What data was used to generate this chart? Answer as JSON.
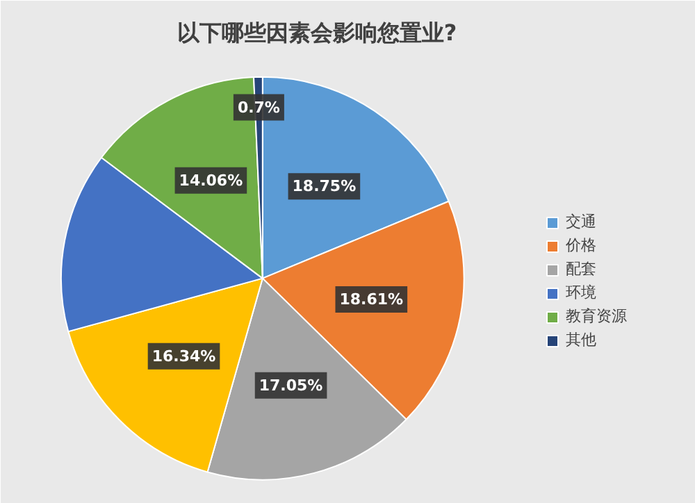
{
  "chart_data": {
    "type": "pie",
    "title": "以下哪些因素会影响您置业?",
    "categories": [
      "交通",
      "价格",
      "配套",
      null,
      "环境",
      "教育资源",
      "其他"
    ],
    "values": [
      18.75,
      18.61,
      17.05,
      16.34,
      14.49,
      14.06,
      0.7
    ],
    "value_labels": [
      "18.75%",
      "18.61%",
      "17.05%",
      "16.34%",
      null,
      "14.06%",
      "0.7%"
    ],
    "colors": [
      "#5b9bd5",
      "#ed7d31",
      "#a5a5a5",
      "#ffc000",
      "#4472c4",
      "#70ad47",
      "#264478"
    ],
    "legend": "right"
  }
}
